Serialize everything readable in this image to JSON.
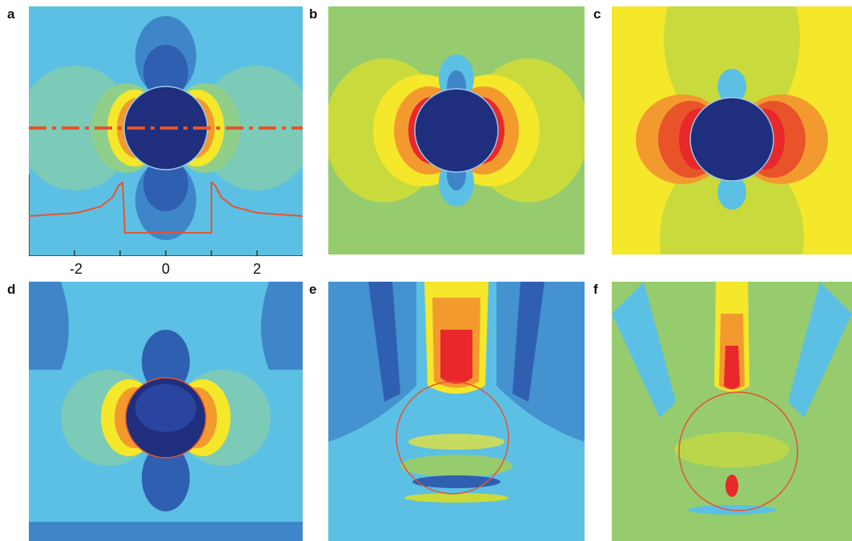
{
  "figure": {
    "panels": [
      {
        "label": "a"
      },
      {
        "label": "b"
      },
      {
        "label": "c"
      },
      {
        "label": "d"
      },
      {
        "label": "e"
      },
      {
        "label": "f"
      }
    ],
    "inset_axis": {
      "x_ticks": [
        "-2",
        "0",
        "2"
      ]
    },
    "colors": {
      "dark_blue": "#1f2f7e",
      "blue": "#3f86c9",
      "light_blue": "#5bc0e3",
      "green": "#96cc6e",
      "yellow_green": "#c9db3c",
      "yellow": "#f5e72a",
      "orange": "#f39a2f",
      "red": "#e8282a",
      "profile_line": "#e8532a"
    }
  }
}
